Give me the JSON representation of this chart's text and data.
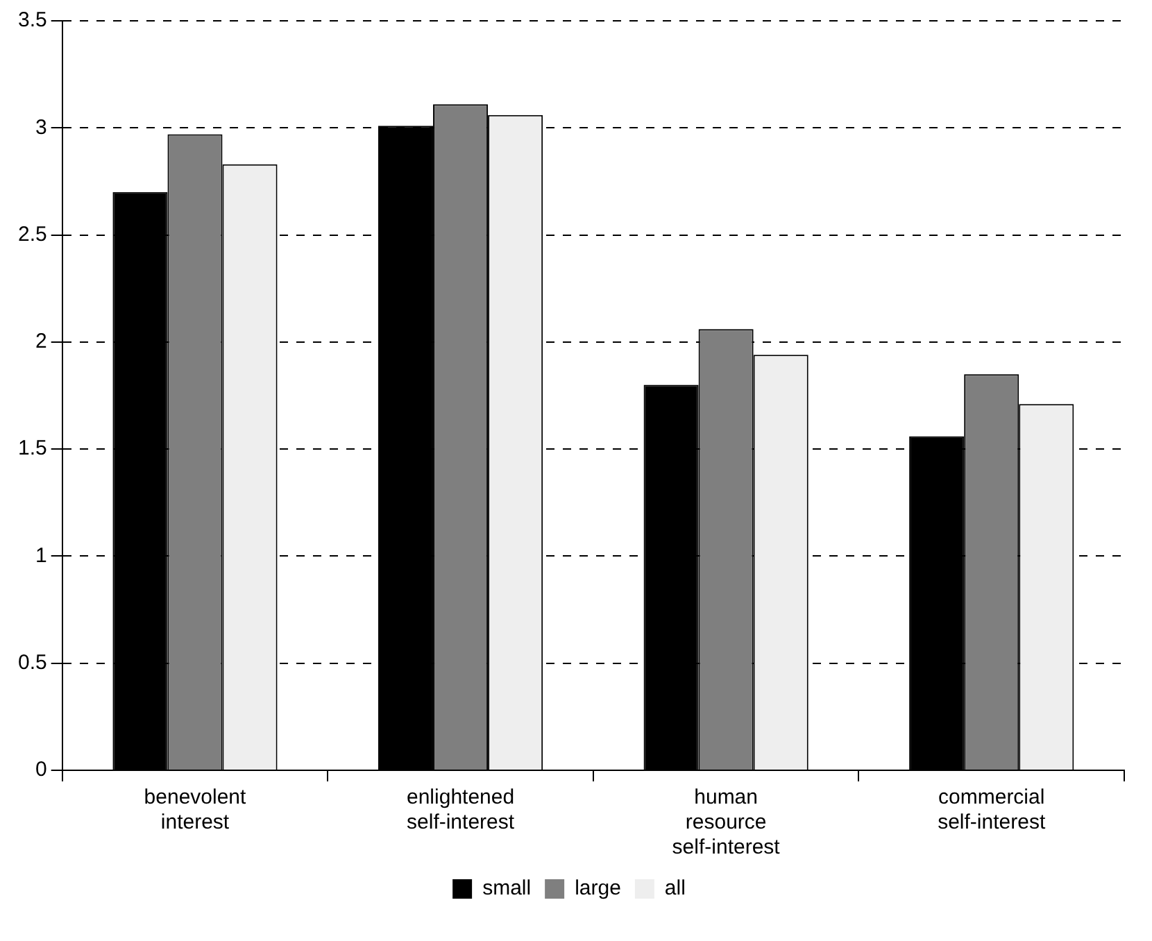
{
  "chart_data": {
    "type": "bar",
    "categories": [
      "benevolent interest",
      "enlightened self-interest",
      "human resource self-interest",
      "commercial self-interest"
    ],
    "series": [
      {
        "name": "small",
        "color": "#000000",
        "values": [
          2.7,
          3.01,
          1.8,
          1.56
        ]
      },
      {
        "name": "large",
        "color": "#7f7f7f",
        "values": [
          2.97,
          3.11,
          2.06,
          1.85
        ]
      },
      {
        "name": "all",
        "color": "#eeeeee",
        "values": [
          2.83,
          3.06,
          1.94,
          1.71
        ]
      }
    ],
    "ylim": [
      0,
      3.5
    ],
    "yticks": [
      0,
      0.5,
      1,
      1.5,
      2,
      2.5,
      3,
      3.5
    ],
    "grid": "y",
    "legend": "bottom"
  }
}
